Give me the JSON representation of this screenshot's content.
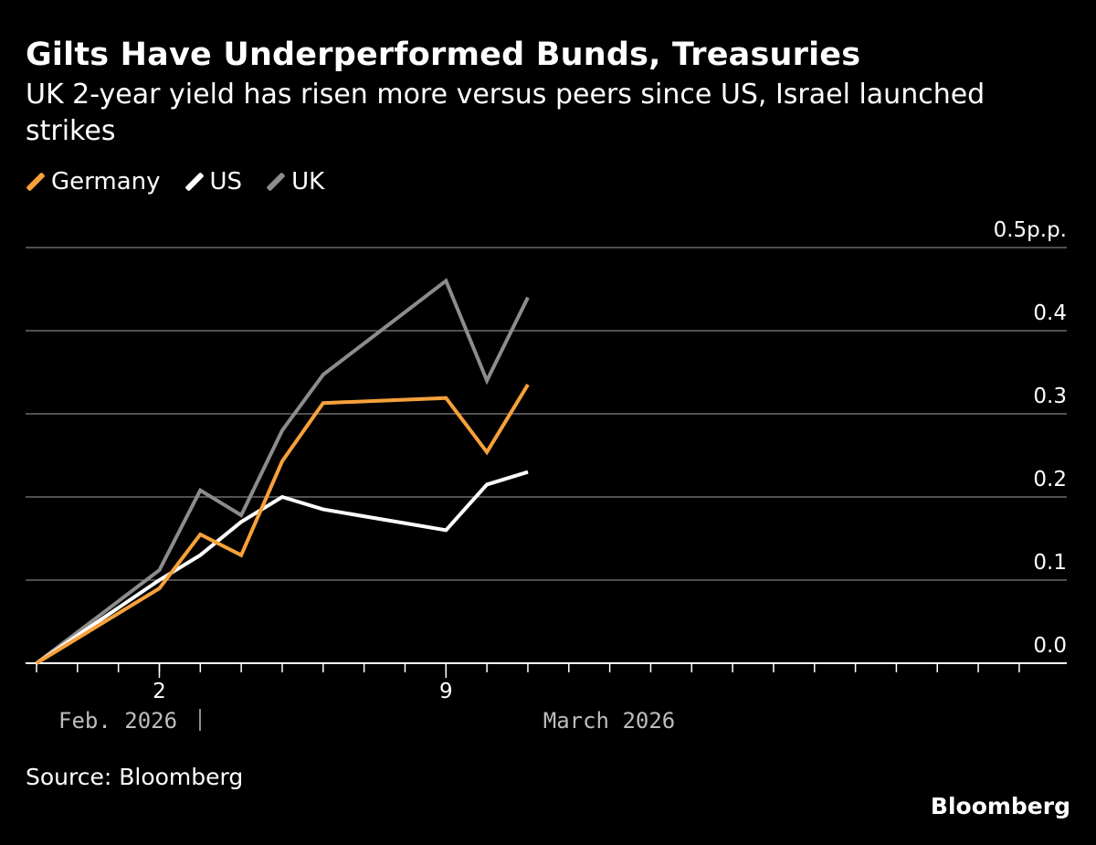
{
  "header": {
    "title": "Gilts Have Underperformed Bunds, Treasuries",
    "subtitle": "UK 2-year yield has risen more versus peers since US, Israel launched strikes"
  },
  "legend": [
    {
      "label": "Germany",
      "color": "#f7a13a"
    },
    {
      "label": "US",
      "color": "#ffffff"
    },
    {
      "label": "UK",
      "color": "#8c8c8c"
    }
  ],
  "footer": {
    "source": "Source: Bloomberg",
    "brand": "Bloomberg"
  },
  "chart_data": {
    "type": "line",
    "x": [
      "2026-02-27",
      "2026-03-02",
      "2026-03-03",
      "2026-03-04",
      "2026-03-05",
      "2026-03-06",
      "2026-03-09",
      "2026-03-10",
      "2026-03-11"
    ],
    "series": [
      {
        "name": "Germany",
        "color": "#f7a13a",
        "values": [
          0.0,
          0.09,
          0.155,
          0.13,
          0.243,
          0.313,
          0.319,
          0.254,
          0.335
        ]
      },
      {
        "name": "US",
        "color": "#ffffff",
        "values": [
          0.0,
          0.1,
          0.13,
          0.17,
          0.2,
          0.185,
          0.16,
          0.215,
          0.23
        ]
      },
      {
        "name": "UK",
        "color": "#8c8c8c",
        "values": [
          0.0,
          0.112,
          0.208,
          0.178,
          0.28,
          0.347,
          0.46,
          0.34,
          0.44
        ]
      }
    ],
    "ylim": [
      0,
      0.5
    ],
    "y_ticks": [
      "0.0",
      "0.1",
      "0.2",
      "0.3",
      "0.4",
      "0.5p.p."
    ],
    "x_tick_labels": [
      {
        "date": "2026-03-02",
        "label": "2"
      },
      {
        "date": "2026-03-09",
        "label": "9"
      }
    ],
    "period_labels": [
      "Feb. 2026",
      "March 2026"
    ],
    "grid": true,
    "xlabel": "",
    "ylabel": ""
  }
}
